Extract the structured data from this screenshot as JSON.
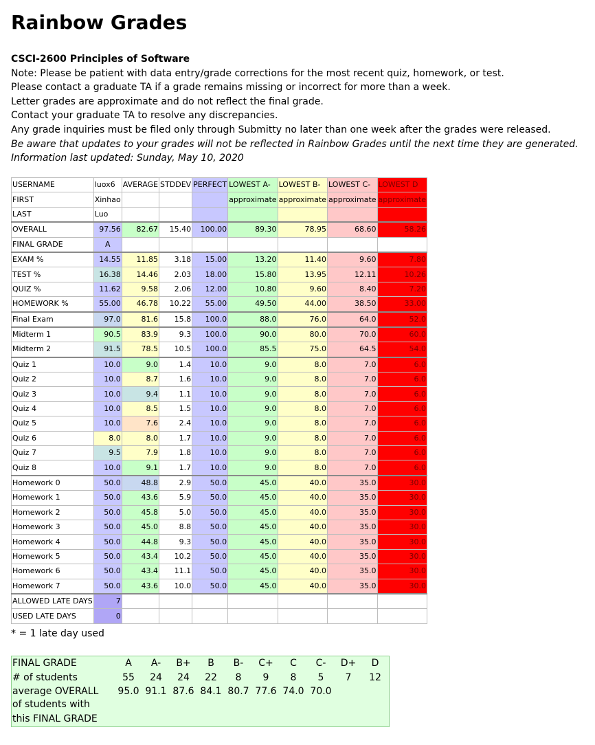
{
  "page": {
    "title": "Rainbow Grades",
    "course": "CSCI-2600 Principles of Software",
    "notes": [
      "Note: Please be patient with data entry/grade corrections for the most recent quiz, homework, or test.",
      "Please contact a graduate TA if a grade remains missing or incorrect for more than a week.",
      "Letter grades are approximate and do not reflect the final grade.",
      "Contact your graduate TA to resolve any discrepancies.",
      "Any grade inquiries must be filed only through Submitty no later than one week after the grades were released."
    ],
    "italic_notes": [
      "Be aware that updates to your grades will not be reflected in Rainbow Grades until the next time they are generated.",
      "Information last updated: Sunday, May 10, 2020"
    ]
  },
  "colors": {
    "perfect": "#c8c8ff",
    "lowest_a_minus": "#c8ffc8",
    "lowest_b_minus": "#ffffc8",
    "lowest_c_minus": "#ffc8c8",
    "lowest_d": "#ff0000",
    "late_days": "#b0a6f6",
    "summary_bg": "#e0ffe0"
  },
  "table": {
    "header": [
      "USERNAME",
      "luox6",
      "AVERAGE",
      "STDDEV",
      "PERFECT",
      "LOWEST A-",
      "LOWEST B-",
      "LOWEST C-",
      "LOWEST D"
    ],
    "first_row": [
      "FIRST",
      "Xinhao",
      "",
      "",
      "",
      "approximate",
      "approximate",
      "approximate",
      "approximate"
    ],
    "last_row": [
      "LAST",
      "Luo",
      "",
      "",
      "",
      "",
      "",
      "",
      ""
    ],
    "overall": [
      "OVERALL",
      "97.56",
      "82.67",
      "15.40",
      "100.00",
      "89.30",
      "78.95",
      "68.60",
      "58.26"
    ],
    "final_grade": [
      "FINAL GRADE",
      "A",
      "",
      "",
      "",
      "",
      "",
      "",
      ""
    ],
    "categories": [
      [
        "EXAM %",
        "14.55",
        "11.85",
        "3.18",
        "15.00",
        "13.20",
        "11.40",
        "9.60",
        "7.80"
      ],
      [
        "TEST %",
        "16.38",
        "14.46",
        "2.03",
        "18.00",
        "15.80",
        "13.95",
        "12.11",
        "10.26"
      ],
      [
        "QUIZ %",
        "11.62",
        "9.58",
        "2.06",
        "12.00",
        "10.80",
        "9.60",
        "8.40",
        "7.20"
      ],
      [
        "HOMEWORK %",
        "55.00",
        "46.78",
        "10.22",
        "55.00",
        "49.50",
        "44.00",
        "38.50",
        "33.00"
      ]
    ],
    "exam": [
      [
        "Final Exam",
        "97.0",
        "81.6",
        "15.8",
        "100.0",
        "88.0",
        "76.0",
        "64.0",
        "52.0"
      ]
    ],
    "tests": [
      [
        "Midterm 1",
        "90.5",
        "83.9",
        "9.3",
        "100.0",
        "90.0",
        "80.0",
        "70.0",
        "60.0"
      ],
      [
        "Midterm 2",
        "91.5",
        "78.5",
        "10.5",
        "100.0",
        "85.5",
        "75.0",
        "64.5",
        "54.0"
      ]
    ],
    "quizzes": [
      [
        "Quiz 1",
        "10.0",
        "9.0",
        "1.4",
        "10.0",
        "9.0",
        "8.0",
        "7.0",
        "6.0"
      ],
      [
        "Quiz 2",
        "10.0",
        "8.7",
        "1.6",
        "10.0",
        "9.0",
        "8.0",
        "7.0",
        "6.0"
      ],
      [
        "Quiz 3",
        "10.0",
        "9.4",
        "1.1",
        "10.0",
        "9.0",
        "8.0",
        "7.0",
        "6.0"
      ],
      [
        "Quiz 4",
        "10.0",
        "8.5",
        "1.5",
        "10.0",
        "9.0",
        "8.0",
        "7.0",
        "6.0"
      ],
      [
        "Quiz 5",
        "10.0",
        "7.6",
        "2.4",
        "10.0",
        "9.0",
        "8.0",
        "7.0",
        "6.0"
      ],
      [
        "Quiz 6",
        "8.0",
        "8.0",
        "1.7",
        "10.0",
        "9.0",
        "8.0",
        "7.0",
        "6.0"
      ],
      [
        "Quiz 7",
        "9.5",
        "7.9",
        "1.8",
        "10.0",
        "9.0",
        "8.0",
        "7.0",
        "6.0"
      ],
      [
        "Quiz 8",
        "10.0",
        "9.1",
        "1.7",
        "10.0",
        "9.0",
        "8.0",
        "7.0",
        "6.0"
      ]
    ],
    "homeworks": [
      [
        "Homework 0",
        "50.0",
        "48.8",
        "2.9",
        "50.0",
        "45.0",
        "40.0",
        "35.0",
        "30.0"
      ],
      [
        "Homework 1",
        "50.0",
        "43.6",
        "5.9",
        "50.0",
        "45.0",
        "40.0",
        "35.0",
        "30.0"
      ],
      [
        "Homework 2",
        "50.0",
        "45.8",
        "5.0",
        "50.0",
        "45.0",
        "40.0",
        "35.0",
        "30.0"
      ],
      [
        "Homework 3",
        "50.0",
        "45.0",
        "8.8",
        "50.0",
        "45.0",
        "40.0",
        "35.0",
        "30.0"
      ],
      [
        "Homework 4",
        "50.0",
        "44.8",
        "9.3",
        "50.0",
        "45.0",
        "40.0",
        "35.0",
        "30.0"
      ],
      [
        "Homework 5",
        "50.0",
        "43.4",
        "10.2",
        "50.0",
        "45.0",
        "40.0",
        "35.0",
        "30.0"
      ],
      [
        "Homework 6",
        "50.0",
        "43.4",
        "11.1",
        "50.0",
        "45.0",
        "40.0",
        "35.0",
        "30.0"
      ],
      [
        "Homework 7",
        "50.0",
        "43.6",
        "10.0",
        "50.0",
        "45.0",
        "40.0",
        "35.0",
        "30.0"
      ]
    ],
    "allowed_late_days": [
      "ALLOWED LATE DAYS",
      "7",
      "",
      "",
      "",
      "",
      "",
      "",
      ""
    ],
    "used_late_days": [
      "USED LATE DAYS",
      "0",
      "",
      "",
      "",
      "",
      "",
      "",
      ""
    ]
  },
  "cell_colors": {
    "overall": [
      "#c8c8ff",
      "#c8ffc8"
    ],
    "final_grade": [
      "#c8c8ff",
      ""
    ],
    "categories": [
      [
        "#c8c8ff",
        "#ffffc8"
      ],
      [
        "#c8e4e4",
        "#ffffc8"
      ],
      [
        "#c8c8ff",
        "#ffffc8"
      ],
      [
        "#c8c8ff",
        "#ffffc8"
      ]
    ],
    "exam": [
      [
        "#c8d8f0",
        "#ffffc8"
      ]
    ],
    "tests": [
      [
        "#c8ffc8",
        "#ffffc8"
      ],
      [
        "#c8e4e4",
        "#ffffc8"
      ]
    ],
    "quizzes": [
      [
        "#c8c8ff",
        "#c8ffc8"
      ],
      [
        "#c8c8ff",
        "#ffffc8"
      ],
      [
        "#c8c8ff",
        "#c8e4e4"
      ],
      [
        "#c8c8ff",
        "#ffffc8"
      ],
      [
        "#c8c8ff",
        "#ffe4c8"
      ],
      [
        "#ffffc8",
        "#ffffc8"
      ],
      [
        "#c8e4e4",
        "#ffffc8"
      ],
      [
        "#c8c8ff",
        "#c8ffc8"
      ]
    ],
    "homeworks": [
      [
        "#c8c8ff",
        "#c8d8f0"
      ],
      [
        "#c8c8ff",
        "#c8ffc8"
      ],
      [
        "#c8c8ff",
        "#c8ffc8"
      ],
      [
        "#c8c8ff",
        "#c8ffc8"
      ],
      [
        "#c8c8ff",
        "#c8ffc8"
      ],
      [
        "#c8c8ff",
        "#c8ffc8"
      ],
      [
        "#c8c8ff",
        "#c8ffc8"
      ],
      [
        "#c8c8ff",
        "#c8ffc8"
      ]
    ]
  },
  "late_note": "* = 1 late day used",
  "summary": {
    "row_label_grade": "FINAL GRADE",
    "grades": [
      "A",
      "A-",
      "B+",
      "B",
      "B-",
      "C+",
      "C",
      "C-",
      "D+",
      "D"
    ],
    "row_label_count": "# of students",
    "counts": [
      "55",
      "24",
      "24",
      "22",
      "8",
      "9",
      "8",
      "5",
      "7",
      "12"
    ],
    "row_label_avg": "average OVERALL",
    "averages": [
      "95.0",
      "91.1",
      "87.6",
      "84.1",
      "80.7",
      "77.6",
      "74.0",
      "70.0",
      "",
      ""
    ],
    "row_label_avg_2": "of students with",
    "row_label_avg_3": "this FINAL GRADE"
  }
}
